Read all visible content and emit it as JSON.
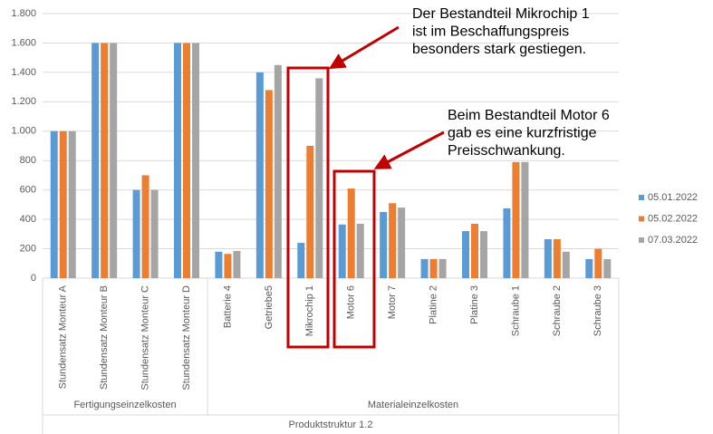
{
  "chart_data": {
    "type": "bar",
    "categories": [
      "Stundensatz Monteur A",
      "Stundensatz Monteur B",
      "Stundensatz Monteur C",
      "Stundensatz Monteur D",
      "Batterie 4",
      "Getriebe5",
      "Mikrochip 1",
      "Motor 6",
      "Motor 7",
      "Platine 2",
      "Platine 3",
      "Schraube 1",
      "Schraube 2",
      "Schraube 3"
    ],
    "groups": [
      "Fertigungseinzelkosten",
      "Materialeinzelkosten"
    ],
    "xlabel": "Produktstruktur 1.2",
    "series": [
      {
        "name": "05.01.2022",
        "color": "#5b9bd5",
        "values": [
          1000,
          1600,
          600,
          1600,
          180,
          1400,
          240,
          365,
          450,
          130,
          320,
          475,
          265,
          130
        ]
      },
      {
        "name": "05.02.2022",
        "color": "#ed7d31",
        "values": [
          1000,
          1600,
          700,
          1600,
          165,
          1280,
          900,
          610,
          510,
          130,
          370,
          790,
          265,
          200
        ]
      },
      {
        "name": "07.03.2022",
        "color": "#a5a5a5",
        "values": [
          1000,
          1600,
          600,
          1600,
          185,
          1450,
          1360,
          370,
          480,
          130,
          320,
          790,
          180,
          130
        ]
      }
    ],
    "ylim": [
      0,
      1800
    ],
    "yticks": [
      0,
      200,
      400,
      600,
      800,
      {
        "value": 1000,
        "label": "1.000"
      },
      {
        "value": 1200,
        "label": "1.200"
      },
      {
        "value": 1400,
        "label": "1.400"
      },
      {
        "value": 1600,
        "label": "1.600"
      },
      {
        "value": 1800,
        "label": "1.800"
      }
    ],
    "grid": true,
    "legend": "right",
    "annotations": [
      {
        "lines": [
          "Der Bestandteil Mikrochip 1",
          "ist im Beschaffungspreis",
          "besonders stark gestiegen."
        ]
      },
      {
        "lines": [
          "Beim Bestandteil Motor 6",
          "gab es eine kurzfristige",
          "Preisschwankung."
        ]
      }
    ]
  }
}
